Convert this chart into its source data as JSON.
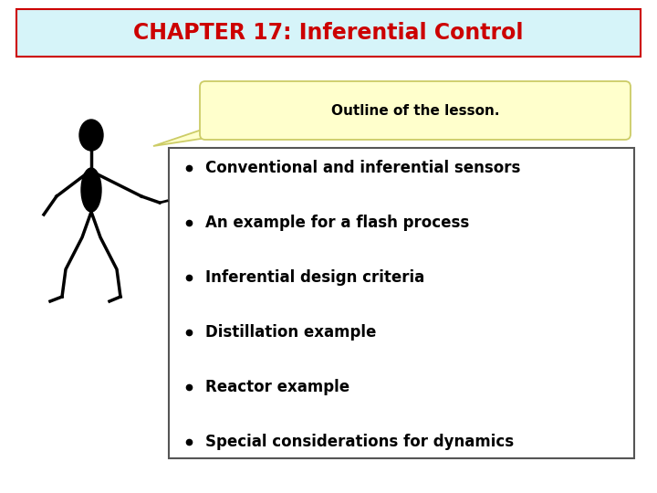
{
  "title": "CHAPTER 17: Inferential Control",
  "title_color": "#cc0000",
  "title_bg": "#d6f4f9",
  "title_border": "#cc0000",
  "speech_bubble_text": "Outline of the lesson.",
  "speech_bubble_bg": "#ffffcc",
  "speech_bubble_border": "#cccc66",
  "bullet_items": [
    "Conventional and inferential sensors",
    "An example for a flash process",
    "Inferential design criteria",
    "Distillation example",
    "Reactor example",
    "Special considerations for dynamics"
  ],
  "bullet_box_bg": "#ffffff",
  "bullet_box_border": "#555555",
  "bg_color": "#ffffff",
  "bullet_text_color": "#000000",
  "bullet_fontsize": 12,
  "speech_fontsize": 11,
  "title_fontsize": 17
}
